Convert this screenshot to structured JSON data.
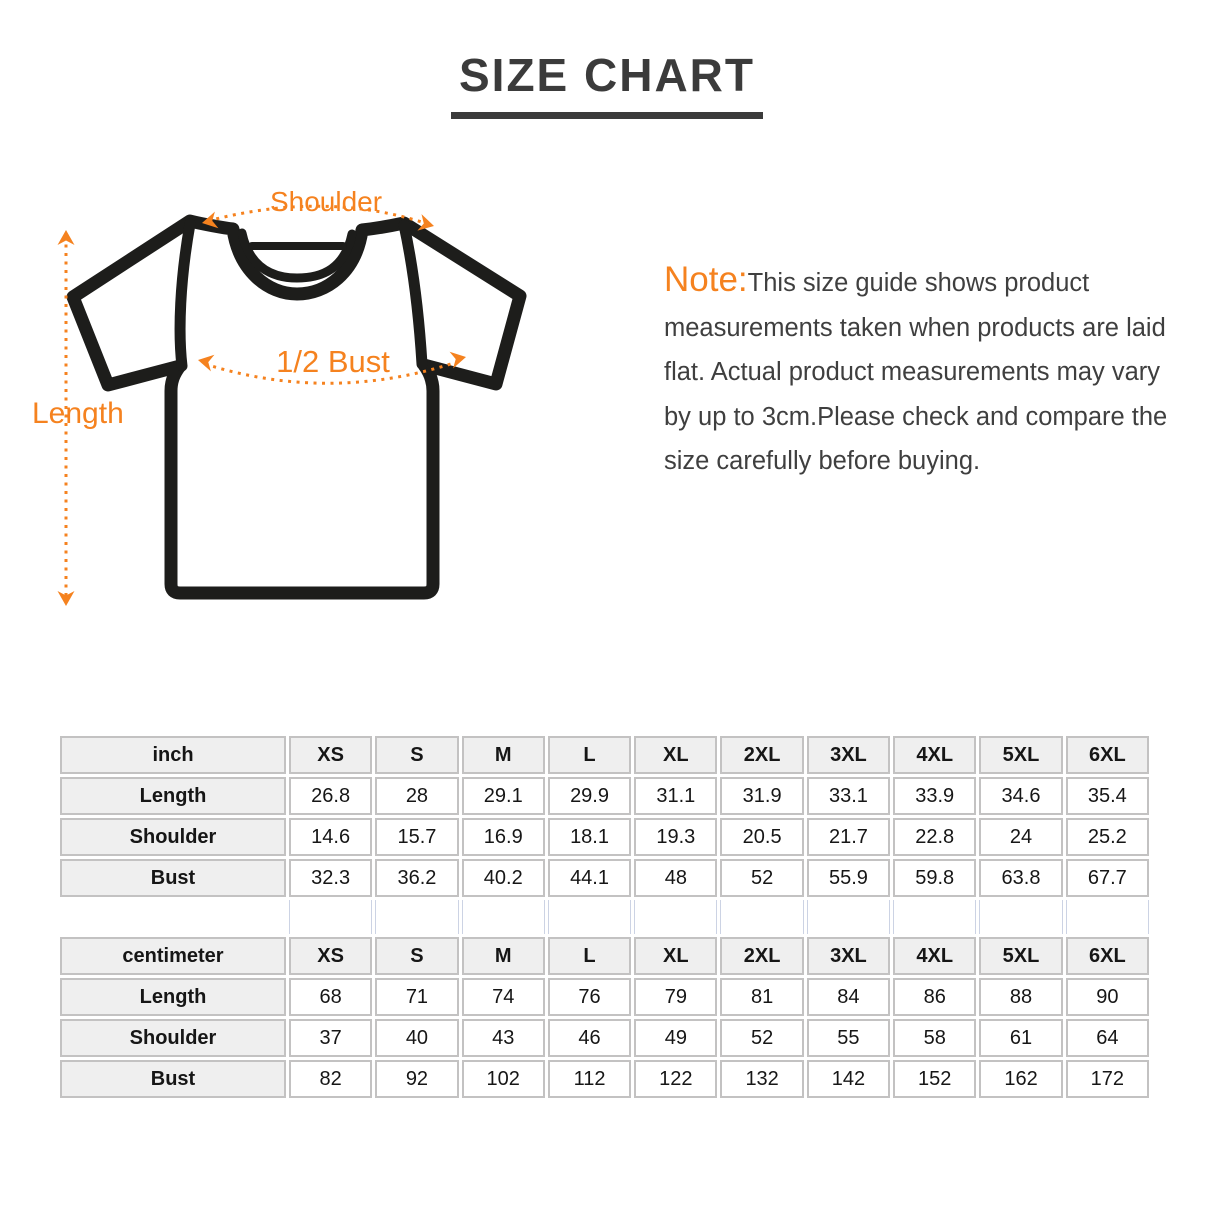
{
  "title": "SIZE CHART",
  "colors": {
    "accent_orange": "#f5821f",
    "shirt_outline": "#1d1d1b",
    "heading_text": "#3b3b3b",
    "table_header_bg": "#efefef",
    "table_border": "#c3c2c2"
  },
  "diagram": {
    "shoulder_label": "Shoulder",
    "bust_label": "1/2 Bust",
    "length_label": "Length"
  },
  "note": {
    "label": "Note:",
    "body": "This size guide shows product measurements taken when products are laid flat. Actual product measurements may vary by up to 3cm.Please check and compare the size carefully before buying."
  },
  "size_tables": [
    {
      "unit_label": "inch",
      "columns": [
        "XS",
        "S",
        "M",
        "L",
        "XL",
        "2XL",
        "3XL",
        "4XL",
        "5XL",
        "6XL"
      ],
      "rows": [
        {
          "label": "Length",
          "values": [
            "26.8",
            "28",
            "29.1",
            "29.9",
            "31.1",
            "31.9",
            "33.1",
            "33.9",
            "34.6",
            "35.4"
          ]
        },
        {
          "label": "Shoulder",
          "values": [
            "14.6",
            "15.7",
            "16.9",
            "18.1",
            "19.3",
            "20.5",
            "21.7",
            "22.8",
            "24",
            "25.2"
          ]
        },
        {
          "label": "Bust",
          "values": [
            "32.3",
            "36.2",
            "40.2",
            "44.1",
            "48",
            "52",
            "55.9",
            "59.8",
            "63.8",
            "67.7"
          ]
        }
      ]
    },
    {
      "unit_label": "centimeter",
      "columns": [
        "XS",
        "S",
        "M",
        "L",
        "XL",
        "2XL",
        "3XL",
        "4XL",
        "5XL",
        "6XL"
      ],
      "rows": [
        {
          "label": "Length",
          "values": [
            "68",
            "71",
            "74",
            "76",
            "79",
            "81",
            "84",
            "86",
            "88",
            "90"
          ]
        },
        {
          "label": "Shoulder",
          "values": [
            "37",
            "40",
            "43",
            "46",
            "49",
            "52",
            "55",
            "58",
            "61",
            "64"
          ]
        },
        {
          "label": "Bust",
          "values": [
            "82",
            "92",
            "102",
            "112",
            "122",
            "132",
            "142",
            "152",
            "162",
            "172"
          ]
        }
      ]
    }
  ]
}
